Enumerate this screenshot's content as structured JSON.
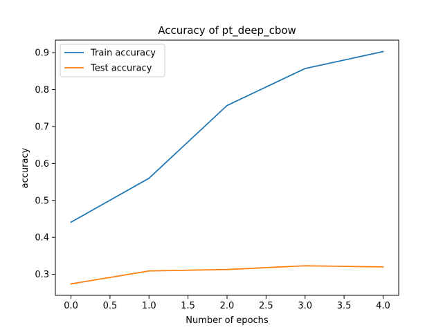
{
  "chart_data": {
    "type": "line",
    "title": "Accuracy of pt_deep_cbow",
    "xlabel": "Number of epochs",
    "ylabel": "accuracy",
    "x": [
      0,
      1,
      2,
      3,
      4
    ],
    "xlim": [
      -0.2,
      4.2
    ],
    "ylim": [
      0.243,
      0.934
    ],
    "xticks": [
      0,
      0.5,
      1,
      1.5,
      2,
      2.5,
      3,
      3.5,
      4
    ],
    "xtick_labels": [
      "0.0",
      "0.5",
      "1.0",
      "1.5",
      "2.0",
      "2.5",
      "3.0",
      "3.5",
      "4.0"
    ],
    "yticks": [
      0.3,
      0.4,
      0.5,
      0.6,
      0.7,
      0.8,
      0.9
    ],
    "ytick_labels": [
      "0.3",
      "0.4",
      "0.5",
      "0.6",
      "0.7",
      "0.8",
      "0.9"
    ],
    "grid": false,
    "legend_position": "top-left",
    "series": [
      {
        "name": "Train accuracy",
        "color": "#1f77b4",
        "values": [
          0.441,
          0.56,
          0.757,
          0.857,
          0.903
        ]
      },
      {
        "name": "Test accuracy",
        "color": "#ff7f0e",
        "values": [
          0.274,
          0.309,
          0.313,
          0.323,
          0.32
        ]
      }
    ]
  }
}
